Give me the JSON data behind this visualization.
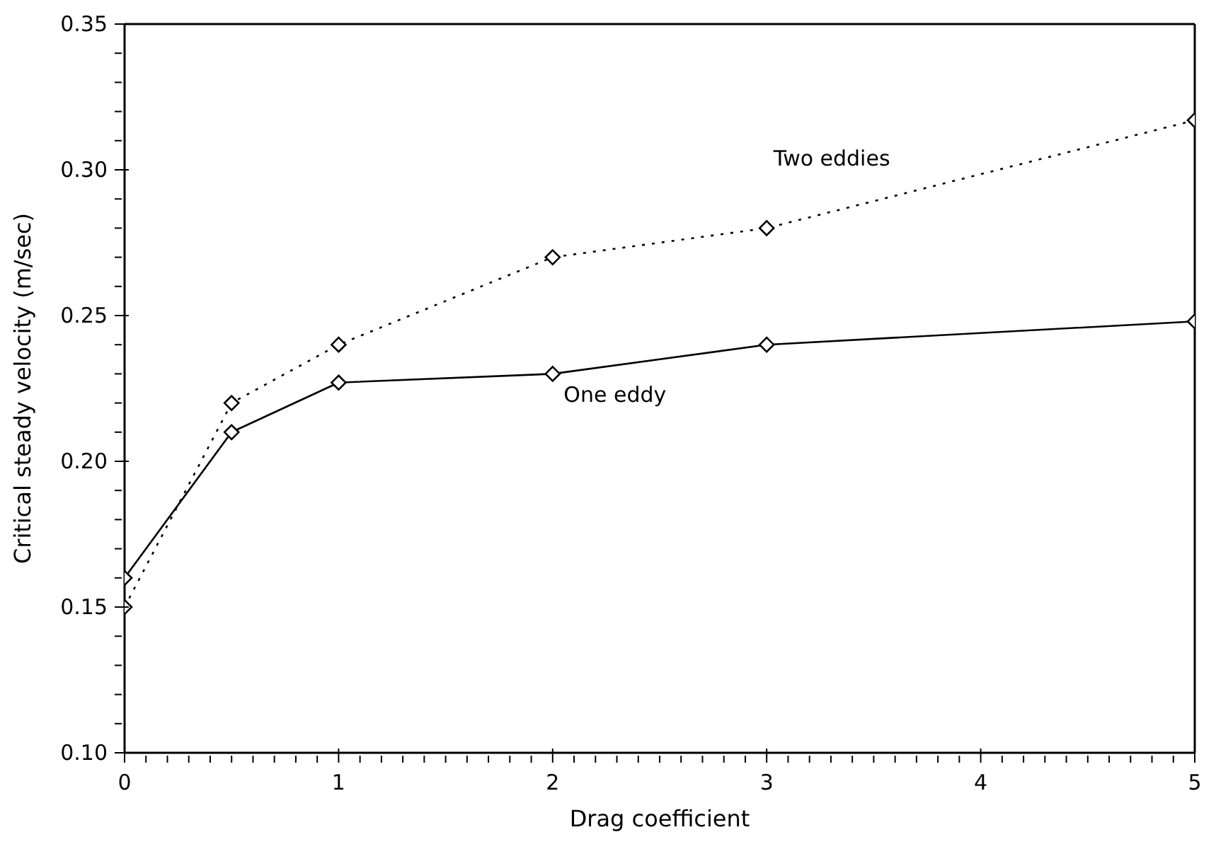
{
  "chart_data": {
    "type": "line",
    "xlabel": "Drag coefficient",
    "ylabel": "Critical steady velocity (m/sec)",
    "x": [
      0,
      0.5,
      1,
      2,
      3,
      5
    ],
    "series": [
      {
        "name": "Two eddies",
        "color": "#000000",
        "line_style": "dotted",
        "values": [
          0.15,
          0.22,
          0.24,
          0.27,
          0.28,
          0.317
        ]
      },
      {
        "name": "One eddy",
        "color": "#000000",
        "line_style": "solid",
        "values": [
          0.16,
          0.21,
          0.227,
          0.23,
          0.24,
          0.248
        ]
      }
    ],
    "marker": "diamond",
    "grid": false,
    "legend": false,
    "xlim": [
      0,
      5
    ],
    "xticks": [
      0,
      {
        "value": 0.1,
        "label": null
      },
      {
        "value": 0.2,
        "label": null
      },
      {
        "value": 0.3,
        "label": null
      },
      {
        "value": 0.4,
        "label": null
      },
      {
        "value": 0.5,
        "label": null
      },
      {
        "value": 0.6,
        "label": null
      },
      {
        "value": 0.7,
        "label": null
      },
      {
        "value": 0.8,
        "label": null
      },
      {
        "value": 0.9,
        "label": null
      },
      1,
      {
        "value": 1.1,
        "label": null
      },
      {
        "value": 1.2,
        "label": null
      },
      {
        "value": 1.3,
        "label": null
      },
      {
        "value": 1.4,
        "label": null
      },
      {
        "value": 1.5,
        "label": null
      },
      {
        "value": 1.6,
        "label": null
      },
      {
        "value": 1.7,
        "label": null
      },
      {
        "value": 1.8,
        "label": null
      },
      {
        "value": 1.9,
        "label": null
      },
      2,
      {
        "value": 2.1,
        "label": null
      },
      {
        "value": 2.2,
        "label": null
      },
      {
        "value": 2.3,
        "label": null
      },
      {
        "value": 2.4,
        "label": null
      },
      {
        "value": 2.5,
        "label": null
      },
      {
        "value": 2.6,
        "label": null
      },
      {
        "value": 2.7,
        "label": null
      },
      {
        "value": 2.8,
        "label": null
      },
      {
        "value": 2.9,
        "label": null
      },
      3,
      {
        "value": 3.1,
        "label": null
      },
      {
        "value": 3.2,
        "label": null
      },
      {
        "value": 3.3,
        "label": null
      },
      {
        "value": 3.4,
        "label": null
      },
      {
        "value": 3.5,
        "label": null
      },
      {
        "value": 3.6,
        "label": null
      },
      {
        "value": 3.7,
        "label": null
      },
      {
        "value": 3.8,
        "label": null
      },
      {
        "value": 3.9,
        "label": null
      },
      4,
      {
        "value": 4.1,
        "label": null
      },
      {
        "value": 4.2,
        "label": null
      },
      {
        "value": 4.3,
        "label": null
      },
      {
        "value": 4.4,
        "label": null
      },
      {
        "value": 4.5,
        "label": null
      },
      {
        "value": 4.6,
        "label": null
      },
      {
        "value": 4.7,
        "label": null
      },
      {
        "value": 4.8,
        "label": null
      },
      {
        "value": 4.9,
        "label": null
      },
      5
    ],
    "ylim": [
      0.1,
      0.35
    ],
    "yticks": [
      {
        "value": 0.1,
        "label": "0.10"
      },
      {
        "value": 0.11,
        "label": null
      },
      {
        "value": 0.12,
        "label": null
      },
      {
        "value": 0.13,
        "label": null
      },
      {
        "value": 0.14,
        "label": null
      },
      {
        "value": 0.15,
        "label": "0.15"
      },
      {
        "value": 0.16,
        "label": null
      },
      {
        "value": 0.17,
        "label": null
      },
      {
        "value": 0.18,
        "label": null
      },
      {
        "value": 0.19,
        "label": null
      },
      {
        "value": 0.2,
        "label": "0.20"
      },
      {
        "value": 0.21,
        "label": null
      },
      {
        "value": 0.22,
        "label": null
      },
      {
        "value": 0.23,
        "label": null
      },
      {
        "value": 0.24,
        "label": null
      },
      {
        "value": 0.25,
        "label": "0.25"
      },
      {
        "value": 0.26,
        "label": null
      },
      {
        "value": 0.27,
        "label": null
      },
      {
        "value": 0.28,
        "label": null
      },
      {
        "value": 0.29,
        "label": null
      },
      {
        "value": 0.3,
        "label": "0.30"
      },
      {
        "value": 0.31,
        "label": null
      },
      {
        "value": 0.32,
        "label": null
      },
      {
        "value": 0.33,
        "label": null
      },
      {
        "value": 0.34,
        "label": null
      },
      {
        "value": 0.35,
        "label": "0.35"
      }
    ]
  }
}
